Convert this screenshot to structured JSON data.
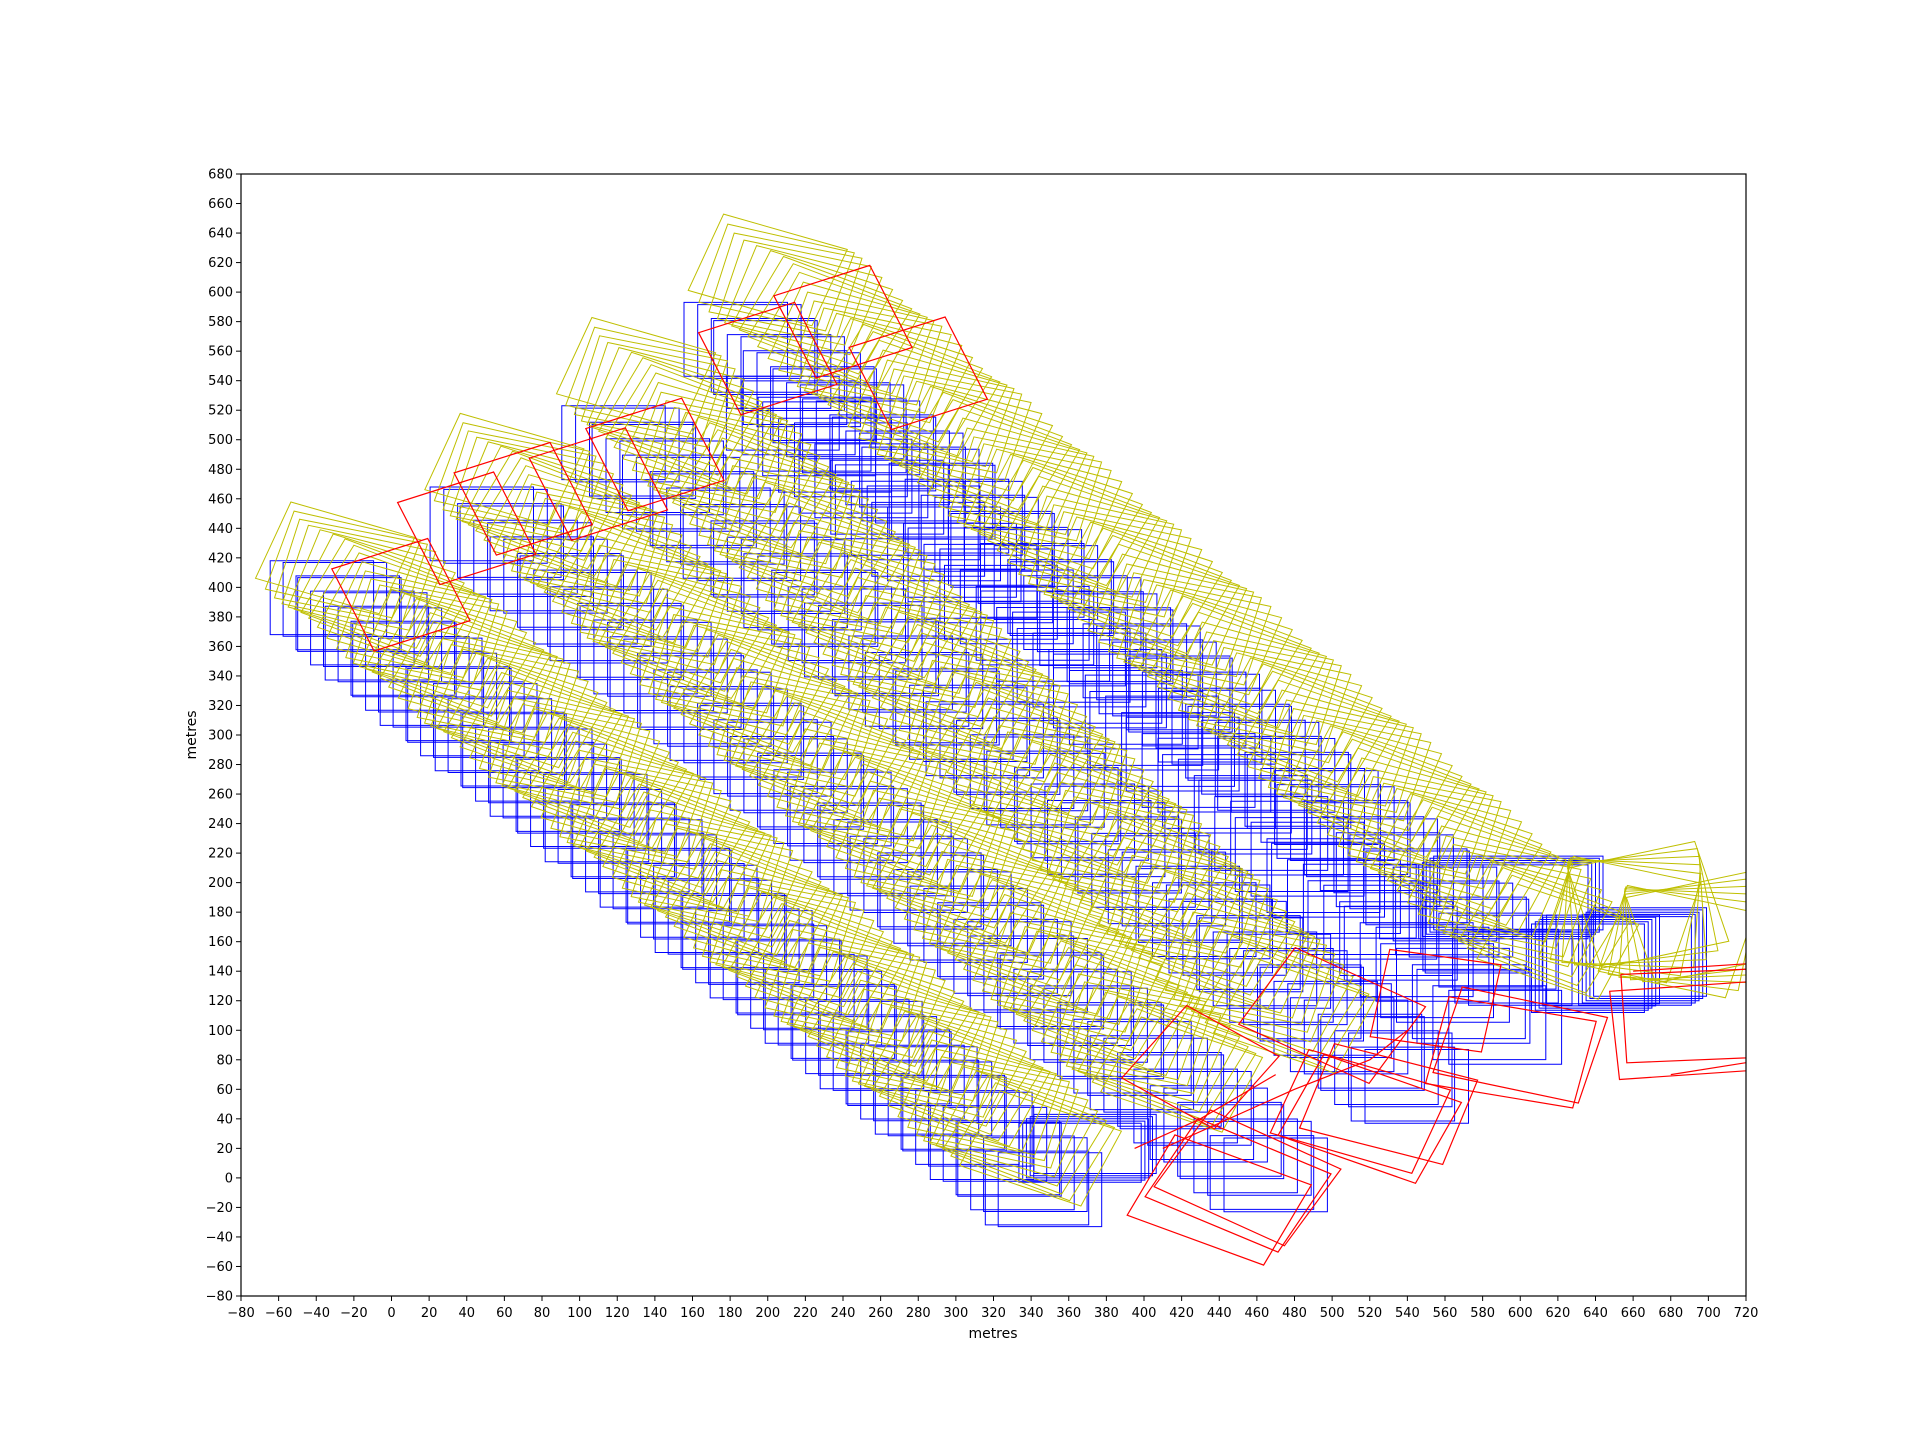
{
  "chart_data": {
    "type": "scatter",
    "title": "",
    "xlabel": "metres",
    "ylabel": "metres",
    "xlim": [
      -80,
      720
    ],
    "ylim": [
      -80,
      680
    ],
    "xticks": [
      -80,
      -60,
      -40,
      -20,
      0,
      20,
      40,
      60,
      80,
      100,
      120,
      140,
      160,
      180,
      200,
      220,
      240,
      260,
      280,
      300,
      320,
      340,
      360,
      380,
      400,
      420,
      440,
      460,
      480,
      500,
      520,
      540,
      560,
      580,
      600,
      620,
      640,
      660,
      680,
      700,
      720
    ],
    "yticks": [
      -80,
      -60,
      -40,
      -20,
      0,
      20,
      40,
      60,
      80,
      100,
      120,
      140,
      160,
      180,
      200,
      220,
      240,
      260,
      280,
      300,
      320,
      340,
      360,
      380,
      400,
      420,
      440,
      460,
      480,
      500,
      520,
      540,
      560,
      580,
      600,
      620,
      640,
      660,
      680
    ],
    "grid": false,
    "description_of_marks": "camera footprint rectangles",
    "series": [
      {
        "color": "#0000ff",
        "kind": "axis-aligned footprints",
        "strips": [
          {
            "start": [
              -35,
              395
            ],
            "end": [
              350,
              -10
            ],
            "size": [
              55,
              50
            ],
            "count": 80
          },
          {
            "start": [
              50,
              445
            ],
            "end": [
              470,
              0
            ],
            "size": [
              55,
              50
            ],
            "count": 80
          },
          {
            "start": [
              120,
              500
            ],
            "end": [
              545,
              60
            ],
            "size": [
              55,
              50
            ],
            "count": 80
          },
          {
            "start": [
              185,
              570
            ],
            "end": [
              600,
              140
            ],
            "size": [
              55,
              50
            ],
            "count": 80
          },
          {
            "start": [
              210,
              520
            ],
            "end": [
              590,
              100
            ],
            "size": [
              60,
              50
            ],
            "count": 60
          }
        ],
        "clusters": [
          {
            "center": [
              595,
              190
            ],
            "size": [
              90,
              50
            ]
          },
          {
            "center": [
              640,
              145
            ],
            "size": [
              60,
              60
            ]
          },
          {
            "center": [
              665,
              150
            ],
            "size": [
              60,
              60
            ]
          },
          {
            "center": [
              370,
              20
            ],
            "size": [
              65,
              40
            ]
          }
        ]
      },
      {
        "color": "#bfbf00",
        "kind": "rotated footprints",
        "strips": [
          {
            "start": [
              -30,
              420
            ],
            "end": [
              345,
              20
            ]
          },
          {
            "start": [
              60,
              480
            ],
            "end": [
              420,
              70
            ]
          },
          {
            "start": [
              130,
              545
            ],
            "end": [
              480,
              110
            ]
          },
          {
            "start": [
              200,
              615
            ],
            "end": [
              620,
              160
            ]
          }
        ],
        "clusters": [
          {
            "center": [
              660,
              180
            ],
            "size": [
              70,
              70
            ]
          },
          {
            "center": [
              690,
              165
            ],
            "size": [
              70,
              60
            ]
          }
        ]
      },
      {
        "color": "#ff0000",
        "kind": "rotated footprints",
        "footprints": [
          {
            "center": [
              5,
              395
            ],
            "size": [
              55,
              60
            ],
            "angle": 22
          },
          {
            "center": [
              40,
              440
            ],
            "size": [
              55,
              60
            ],
            "angle": 22
          },
          {
            "center": [
              70,
              460
            ],
            "size": [
              55,
              60
            ],
            "angle": 22
          },
          {
            "center": [
              110,
              470
            ],
            "size": [
              55,
              60
            ],
            "angle": 22
          },
          {
            "center": [
              140,
              490
            ],
            "size": [
              55,
              60
            ],
            "angle": 22
          },
          {
            "center": [
              200,
              555
            ],
            "size": [
              55,
              60
            ],
            "angle": 22
          },
          {
            "center": [
              240,
              580
            ],
            "size": [
              55,
              60
            ],
            "angle": 22
          },
          {
            "center": [
              280,
              545
            ],
            "size": [
              55,
              60
            ],
            "angle": 22
          },
          {
            "center": [
              440,
              -15
            ],
            "size": [
              80,
              60
            ],
            "angle": -25
          },
          {
            "center": [
              450,
              -5
            ],
            "size": [
              80,
              60
            ],
            "angle": -28
          },
          {
            "center": [
              455,
              0
            ],
            "size": [
              80,
              60
            ],
            "angle": -30
          },
          {
            "center": [
              515,
              45
            ],
            "size": [
              80,
              60
            ],
            "angle": -20
          },
          {
            "center": [
              520,
              40
            ],
            "size": [
              80,
              60
            ],
            "angle": -24
          },
          {
            "center": [
              530,
              50
            ],
            "size": [
              80,
              60
            ],
            "angle": -18
          },
          {
            "center": [
              600,
              90
            ],
            "size": [
              80,
              60
            ],
            "angle": -15
          },
          {
            "center": [
              595,
              85
            ],
            "size": [
              80,
              60
            ],
            "angle": -12
          },
          {
            "center": [
              500,
              110
            ],
            "size": [
              80,
              60
            ],
            "angle": -30
          },
          {
            "center": [
              555,
              120
            ],
            "size": [
              60,
              60
            ],
            "angle": -10
          },
          {
            "center": [
              430,
              75
            ],
            "size": [
              60,
              60
            ],
            "angle": -35
          },
          {
            "center": [
              690,
              100
            ],
            "size": [
              80,
              60
            ],
            "angle": 5
          },
          {
            "center": [
              695,
              110
            ],
            "size": [
              80,
              60
            ],
            "angle": 3
          }
        ],
        "tracks": [
          {
            "points": [
              [
                410,
                20
              ],
              [
                480,
                60
              ],
              [
                520,
                80
              ],
              [
                540,
                100
              ]
            ]
          },
          {
            "points": [
              [
                395,
                20
              ],
              [
                430,
                40
              ],
              [
                470,
                70
              ]
            ]
          },
          {
            "points": [
              [
                660,
                140
              ],
              [
                720,
                145
              ]
            ]
          },
          {
            "points": [
              [
                680,
                70
              ],
              [
                720,
                78
              ]
            ]
          }
        ]
      }
    ]
  }
}
